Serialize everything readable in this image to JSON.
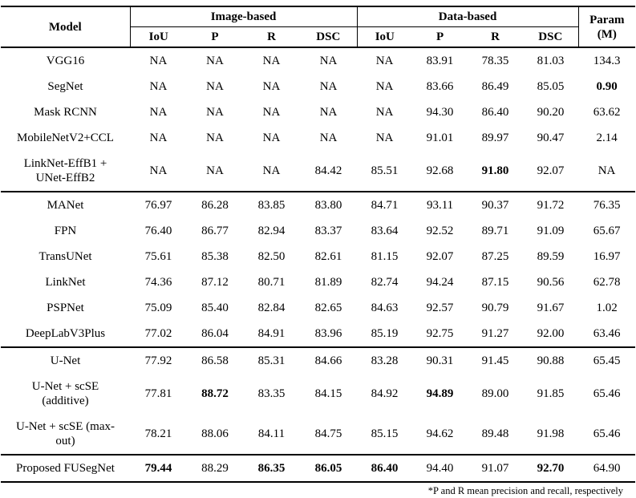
{
  "table": {
    "header": {
      "model": "Model",
      "image_based": "Image-based",
      "data_based": "Data-based",
      "param_line1": "Param",
      "param_line2": "(M)",
      "subheaders": [
        "IoU",
        "P",
        "R",
        "DSC",
        "IoU",
        "P",
        "R",
        "DSC"
      ]
    },
    "groups": [
      {
        "rows": [
          {
            "model": [
              "VGG16"
            ],
            "cells": [
              "NA",
              "NA",
              "NA",
              "NA",
              "NA",
              "83.91",
              "78.35",
              "81.03",
              "134.3"
            ],
            "bold": []
          },
          {
            "model": [
              "SegNet"
            ],
            "cells": [
              "NA",
              "NA",
              "NA",
              "NA",
              "NA",
              "83.66",
              "86.49",
              "85.05",
              "0.90"
            ],
            "bold": [
              8
            ]
          },
          {
            "model": [
              "Mask RCNN"
            ],
            "cells": [
              "NA",
              "NA",
              "NA",
              "NA",
              "NA",
              "94.30",
              "86.40",
              "90.20",
              "63.62"
            ],
            "bold": []
          },
          {
            "model": [
              "MobileNetV2+CCL"
            ],
            "cells": [
              "NA",
              "NA",
              "NA",
              "NA",
              "NA",
              "91.01",
              "89.97",
              "90.47",
              "2.14"
            ],
            "bold": []
          },
          {
            "model": [
              "LinkNet-EffB1 +",
              "UNet-EffB2"
            ],
            "cells": [
              "NA",
              "NA",
              "NA",
              "84.42",
              "85.51",
              "92.68",
              "91.80",
              "92.07",
              "NA"
            ],
            "bold": [
              6
            ]
          }
        ]
      },
      {
        "rows": [
          {
            "model": [
              "MANet"
            ],
            "cells": [
              "76.97",
              "86.28",
              "83.85",
              "83.80",
              "84.71",
              "93.11",
              "90.37",
              "91.72",
              "76.35"
            ],
            "bold": []
          },
          {
            "model": [
              "FPN"
            ],
            "cells": [
              "76.40",
              "86.77",
              "82.94",
              "83.37",
              "83.64",
              "92.52",
              "89.71",
              "91.09",
              "65.67"
            ],
            "bold": []
          },
          {
            "model": [
              "TransUNet"
            ],
            "cells": [
              "75.61",
              "85.38",
              "82.50",
              "82.61",
              "81.15",
              "92.07",
              "87.25",
              "89.59",
              "16.97"
            ],
            "bold": []
          },
          {
            "model": [
              "LinkNet"
            ],
            "cells": [
              "74.36",
              "87.12",
              "80.71",
              "81.89",
              "82.74",
              "94.24",
              "87.15",
              "90.56",
              "62.78"
            ],
            "bold": []
          },
          {
            "model": [
              "PSPNet"
            ],
            "cells": [
              "75.09",
              "85.40",
              "82.84",
              "82.65",
              "84.63",
              "92.57",
              "90.79",
              "91.67",
              "1.02"
            ],
            "bold": []
          },
          {
            "model": [
              "DeepLabV3Plus"
            ],
            "cells": [
              "77.02",
              "86.04",
              "84.91",
              "83.96",
              "85.19",
              "92.75",
              "91.27",
              "92.00",
              "63.46"
            ],
            "bold": []
          }
        ]
      },
      {
        "rows": [
          {
            "model": [
              "U-Net"
            ],
            "cells": [
              "77.92",
              "86.58",
              "85.31",
              "84.66",
              "83.28",
              "90.31",
              "91.45",
              "90.88",
              "65.45"
            ],
            "bold": []
          },
          {
            "model": [
              "U-Net + scSE",
              "(additive)"
            ],
            "cells": [
              "77.81",
              "88.72",
              "83.35",
              "84.15",
              "84.92",
              "94.89",
              "89.00",
              "91.85",
              "65.46"
            ],
            "bold": [
              1,
              5
            ]
          },
          {
            "model": [
              "U-Net + scSE (max-",
              "out)"
            ],
            "cells": [
              "78.21",
              "88.06",
              "84.11",
              "84.75",
              "85.15",
              "94.62",
              "89.48",
              "91.98",
              "65.46"
            ],
            "bold": []
          }
        ]
      },
      {
        "rows": [
          {
            "model": [
              "Proposed FUSegNet"
            ],
            "cells": [
              "79.44",
              "88.29",
              "86.35",
              "86.05",
              "86.40",
              "94.40",
              "91.07",
              "92.70",
              "64.90"
            ],
            "bold": [
              0,
              2,
              3,
              4,
              7
            ]
          }
        ]
      }
    ],
    "footnote": "*P and R mean precision and recall, respectively"
  }
}
